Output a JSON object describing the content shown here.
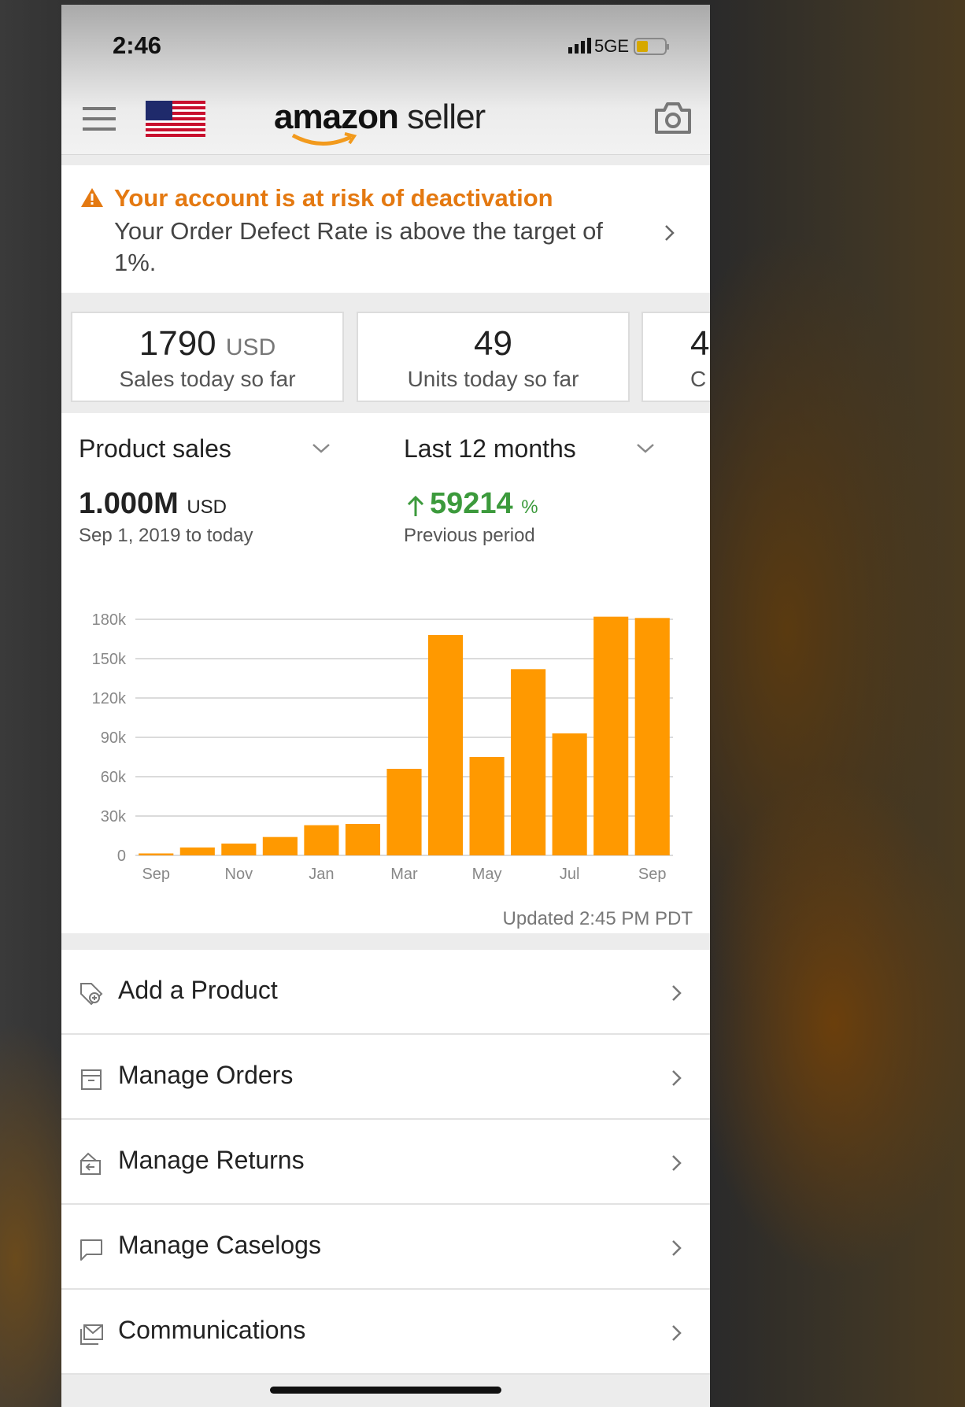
{
  "status_bar": {
    "time": "2:46",
    "network": "5GE"
  },
  "header": {
    "logo_brand": "amazon",
    "logo_product": "seller"
  },
  "alert": {
    "title": "Your account is at risk of deactivation",
    "message": "Your Order Defect Rate is above the target of 1%."
  },
  "cards": [
    {
      "value": "1790",
      "unit": "USD",
      "label": "Sales today so far"
    },
    {
      "value": "49",
      "label": "Units today so far"
    },
    {
      "value": "4",
      "label": "C"
    }
  ],
  "filters": {
    "metric": "Product sales",
    "period": "Last 12 months"
  },
  "summary": {
    "total": "1.000M",
    "total_unit": "USD",
    "range": "Sep 1, 2019 to today",
    "change": "59214",
    "change_unit": "%",
    "change_label": "Previous period"
  },
  "chart_data": {
    "type": "bar",
    "categories": [
      "Sep",
      null,
      "Nov",
      null,
      "Jan",
      null,
      "Mar",
      null,
      "May",
      null,
      "Jul",
      null,
      "Sep"
    ],
    "values": [
      1500,
      6000,
      9000,
      14000,
      23000,
      24000,
      66000,
      168000,
      75000,
      142000,
      93000,
      182000,
      181000
    ],
    "color": "#ff9900",
    "ylim": [
      0,
      180000
    ],
    "yticks": [
      0,
      {
        "value": 30000,
        "label": "30k"
      },
      {
        "value": 60000,
        "label": "60k"
      },
      {
        "value": 90000,
        "label": "90k"
      },
      {
        "value": 120000,
        "label": "120k"
      },
      {
        "value": 150000,
        "label": "150k"
      },
      {
        "value": 180000,
        "label": "180k"
      }
    ],
    "grid": true
  },
  "updated": "Updated 2:45 PM PDT",
  "menu": [
    "Add a Product",
    "Manage Orders",
    "Manage Returns",
    "Manage Caselogs",
    "Communications"
  ]
}
